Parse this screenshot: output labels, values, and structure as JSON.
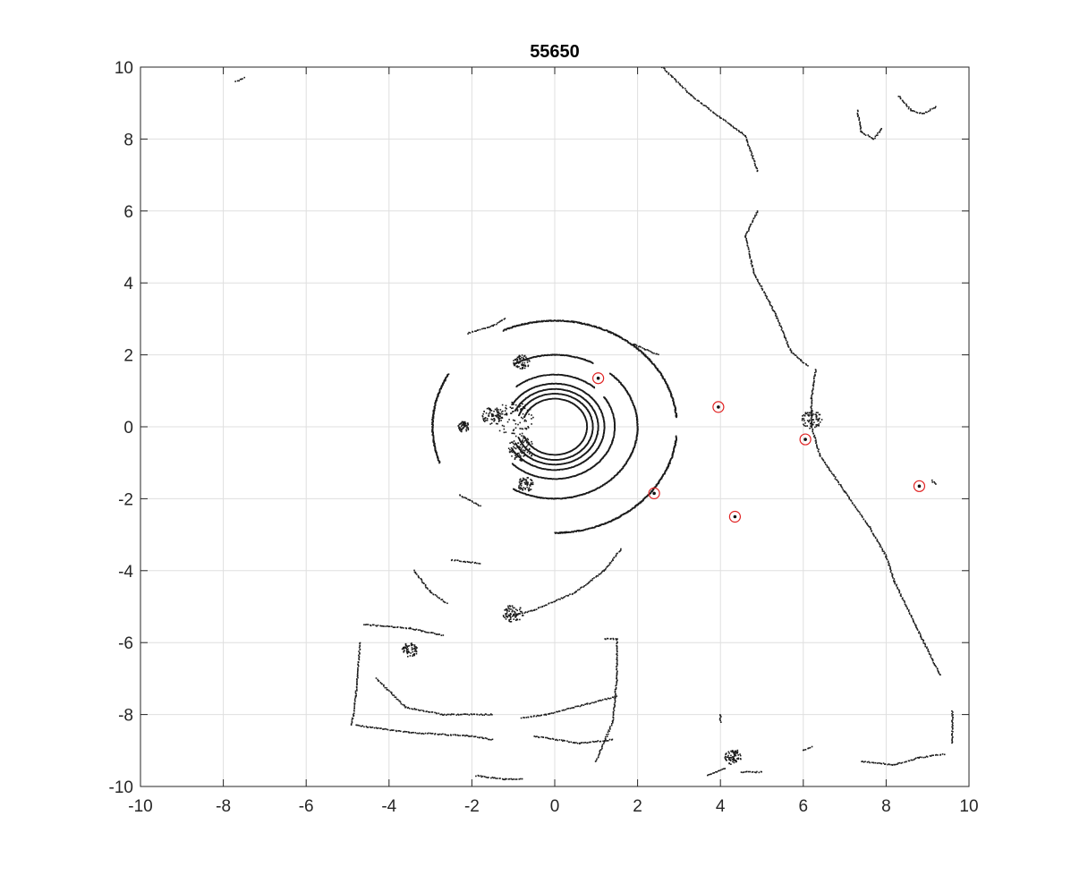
{
  "chart_data": {
    "type": "scatter",
    "title": "55650",
    "xlabel": "",
    "ylabel": "",
    "xlim": [
      -10,
      10
    ],
    "ylim": [
      -10,
      10
    ],
    "xticks": [
      "-10",
      "-8",
      "-6",
      "-4",
      "-2",
      "0",
      "2",
      "4",
      "6",
      "8",
      "10"
    ],
    "yticks": [
      "10",
      "8",
      "6",
      "4",
      "2",
      "0",
      "-2",
      "-4",
      "-6",
      "-8",
      "-10"
    ],
    "grid": true,
    "point_color": "#1a1a1a",
    "marker_color": "#e02020",
    "rings": [
      {
        "r": 0.78,
        "gaps": [
          [
            160,
            200
          ]
        ]
      },
      {
        "r": 0.92,
        "gaps": [
          [
            160,
            200
          ]
        ]
      },
      {
        "r": 1.05,
        "gaps": [
          [
            155,
            205
          ]
        ]
      },
      {
        "r": 1.2,
        "gaps": [
          [
            150,
            210
          ]
        ]
      },
      {
        "r": 1.45,
        "gaps": [
          [
            130,
            225
          ],
          [
            35,
            48
          ]
        ]
      },
      {
        "r": 2.0,
        "gaps": [
          [
            120,
            240
          ],
          [
            48,
            62
          ]
        ]
      },
      {
        "r": 2.95,
        "gaps": [
          [
            115,
            150
          ],
          [
            -5,
            5
          ],
          [
            200,
            270
          ]
        ]
      }
    ],
    "ring_center": [
      0,
      0
    ],
    "polylines": [
      [
        [
          2.6,
          10
        ],
        [
          3.3,
          9.2
        ],
        [
          4,
          8.6
        ],
        [
          4.6,
          8.1
        ],
        [
          4.9,
          7.1
        ]
      ],
      [
        [
          4.9,
          6
        ],
        [
          4.6,
          5.3
        ],
        [
          4.8,
          4.3
        ],
        [
          5.3,
          3.2
        ],
        [
          5.7,
          2.1
        ],
        [
          6.1,
          1.7
        ]
      ],
      [
        [
          6.3,
          1.6
        ],
        [
          6.2,
          0.8
        ],
        [
          6.2,
          0
        ],
        [
          6.4,
          -0.8
        ],
        [
          7.0,
          -1.8
        ],
        [
          7.6,
          -2.8
        ],
        [
          8,
          -3.6
        ],
        [
          8.2,
          -4.3
        ]
      ],
      [
        [
          8.2,
          -4.3
        ],
        [
          8.7,
          -5.5
        ],
        [
          9.3,
          -6.9
        ]
      ],
      [
        [
          9.1,
          -1.5
        ],
        [
          9.2,
          -1.6
        ]
      ],
      [
        [
          -7.7,
          9.6
        ],
        [
          -7.5,
          9.7
        ]
      ],
      [
        [
          7.3,
          8.8
        ],
        [
          7.4,
          8.2
        ],
        [
          7.7,
          8.0
        ],
        [
          7.9,
          8.3
        ]
      ],
      [
        [
          8.3,
          9.2
        ],
        [
          8.6,
          8.8
        ],
        [
          8.9,
          8.7
        ],
        [
          9.2,
          8.9
        ]
      ],
      [
        [
          -2.1,
          2.6
        ],
        [
          -1.5,
          2.8
        ],
        [
          -1.2,
          3.0
        ]
      ],
      [
        [
          1.9,
          2.3
        ],
        [
          2.5,
          2.0
        ]
      ],
      [
        [
          -2.3,
          -1.9
        ],
        [
          -1.8,
          -2.2
        ]
      ],
      [
        [
          1.6,
          -3.4
        ],
        [
          1.2,
          -4.0
        ],
        [
          0.5,
          -4.6
        ],
        [
          -0.5,
          -5.1
        ],
        [
          -1.2,
          -5.3
        ]
      ],
      [
        [
          -3.4,
          -4
        ],
        [
          -3.0,
          -4.6
        ],
        [
          -2.6,
          -4.9
        ]
      ],
      [
        [
          -2.5,
          -3.7
        ],
        [
          -1.8,
          -3.8
        ]
      ],
      [
        [
          -4.6,
          -5.5
        ],
        [
          -3.5,
          -5.6
        ],
        [
          -2.7,
          -5.8
        ]
      ],
      [
        [
          -4.8,
          -8.3
        ],
        [
          -3.5,
          -8.5
        ],
        [
          -2.0,
          -8.6
        ],
        [
          -1.5,
          -8.7
        ]
      ],
      [
        [
          -4.7,
          -6.0
        ],
        [
          -4.8,
          -7.5
        ],
        [
          -4.9,
          -8.3
        ]
      ],
      [
        [
          -4.3,
          -7.0
        ],
        [
          -3.6,
          -7.8
        ],
        [
          -2.7,
          -8.0
        ],
        [
          -1.5,
          -8.0
        ]
      ],
      [
        [
          -0.8,
          -8.1
        ],
        [
          -0.2,
          -8.0
        ],
        [
          0.8,
          -7.7
        ],
        [
          1.5,
          -7.5
        ]
      ],
      [
        [
          -0.5,
          -8.6
        ],
        [
          0.6,
          -8.8
        ],
        [
          1.4,
          -8.7
        ]
      ],
      [
        [
          1.2,
          -5.9
        ],
        [
          1.5,
          -5.9
        ],
        [
          1.5,
          -7.0
        ],
        [
          1.4,
          -8.2
        ],
        [
          1.0,
          -9.3
        ]
      ],
      [
        [
          -1.9,
          -9.7
        ],
        [
          -1.2,
          -9.8
        ],
        [
          -0.8,
          -9.8
        ]
      ],
      [
        [
          7.4,
          -9.3
        ],
        [
          8.2,
          -9.4
        ],
        [
          8.8,
          -9.2
        ],
        [
          9.4,
          -9.1
        ]
      ],
      [
        [
          9.6,
          -7.9
        ],
        [
          9.6,
          -8.8
        ]
      ],
      [
        [
          3.7,
          -9.7
        ],
        [
          4.1,
          -9.5
        ]
      ],
      [
        [
          4.3,
          -9.3
        ],
        [
          4.4,
          -9.0
        ]
      ],
      [
        [
          4.5,
          -9.6
        ],
        [
          5.0,
          -9.6
        ]
      ],
      [
        [
          4.0,
          -8.0
        ],
        [
          4.0,
          -8.2
        ]
      ],
      [
        [
          6.0,
          -9.0
        ],
        [
          6.2,
          -8.9
        ]
      ]
    ],
    "scatter_clusters": [
      [
        -1.0,
        0.2,
        0.5
      ],
      [
        -0.8,
        -0.6,
        0.35
      ],
      [
        -0.7,
        -1.6,
        0.2
      ],
      [
        -1.5,
        0.3,
        0.25
      ],
      [
        -0.8,
        1.8,
        0.2
      ],
      [
        -2.2,
        0.0,
        0.15
      ],
      [
        6.2,
        0.2,
        0.25
      ],
      [
        4.3,
        -9.2,
        0.2
      ],
      [
        -1.0,
        -5.2,
        0.25
      ],
      [
        -3.5,
        -6.2,
        0.2
      ]
    ],
    "detections": [
      {
        "x": 1.05,
        "y": 1.35
      },
      {
        "x": 3.95,
        "y": 0.55
      },
      {
        "x": 6.05,
        "y": -0.35
      },
      {
        "x": 2.4,
        "y": -1.85
      },
      {
        "x": 4.35,
        "y": -2.5
      },
      {
        "x": 8.8,
        "y": -1.65
      }
    ]
  }
}
